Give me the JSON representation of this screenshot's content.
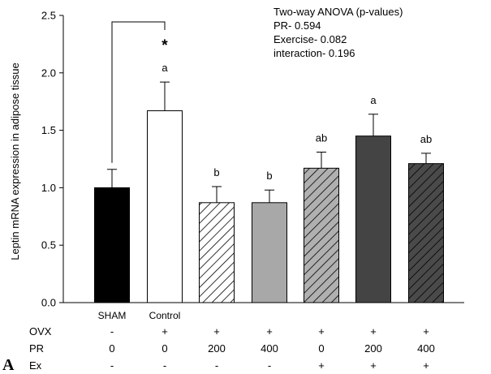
{
  "chart_data": {
    "type": "bar",
    "title": "",
    "panel_label": "A",
    "ylabel": "Leptin mRNA expression in adipose tissue",
    "ylim": [
      0,
      2.5
    ],
    "yticks": [
      "0.0",
      "0.5",
      "1.0",
      "1.5",
      "2.0",
      "2.5"
    ],
    "categories": [
      "SHAM",
      "Control",
      "",
      "",
      "",
      "",
      ""
    ],
    "values": [
      1.0,
      1.67,
      0.87,
      0.87,
      1.17,
      1.45,
      1.21
    ],
    "errors": [
      0.16,
      0.25,
      0.14,
      0.11,
      0.14,
      0.19,
      0.09
    ],
    "letters": [
      "",
      "a",
      "b",
      "b",
      "ab",
      "a",
      "ab"
    ],
    "fills": [
      "#000000",
      "#ffffff",
      "hatch-white",
      "#a8a8a8",
      "hatch-gray",
      "#444444",
      "hatch-dark"
    ],
    "significance": {
      "from": 0,
      "to": 1,
      "label": "*"
    },
    "annotation_lines": [
      "Two-way ANOVA (p-values)",
      "PR- 0.594",
      "Exercise- 0.082",
      "interaction- 0.196"
    ],
    "factor_table": [
      {
        "label": "OVX",
        "values": [
          "-",
          "+",
          "+",
          "+",
          "+",
          "+",
          "+"
        ]
      },
      {
        "label": "PR",
        "values": [
          "0",
          "0",
          "200",
          "400",
          "0",
          "200",
          "400"
        ]
      },
      {
        "label": "Ex",
        "values": [
          "-",
          "-",
          "-",
          "-",
          "+",
          "+",
          "+"
        ]
      }
    ]
  }
}
